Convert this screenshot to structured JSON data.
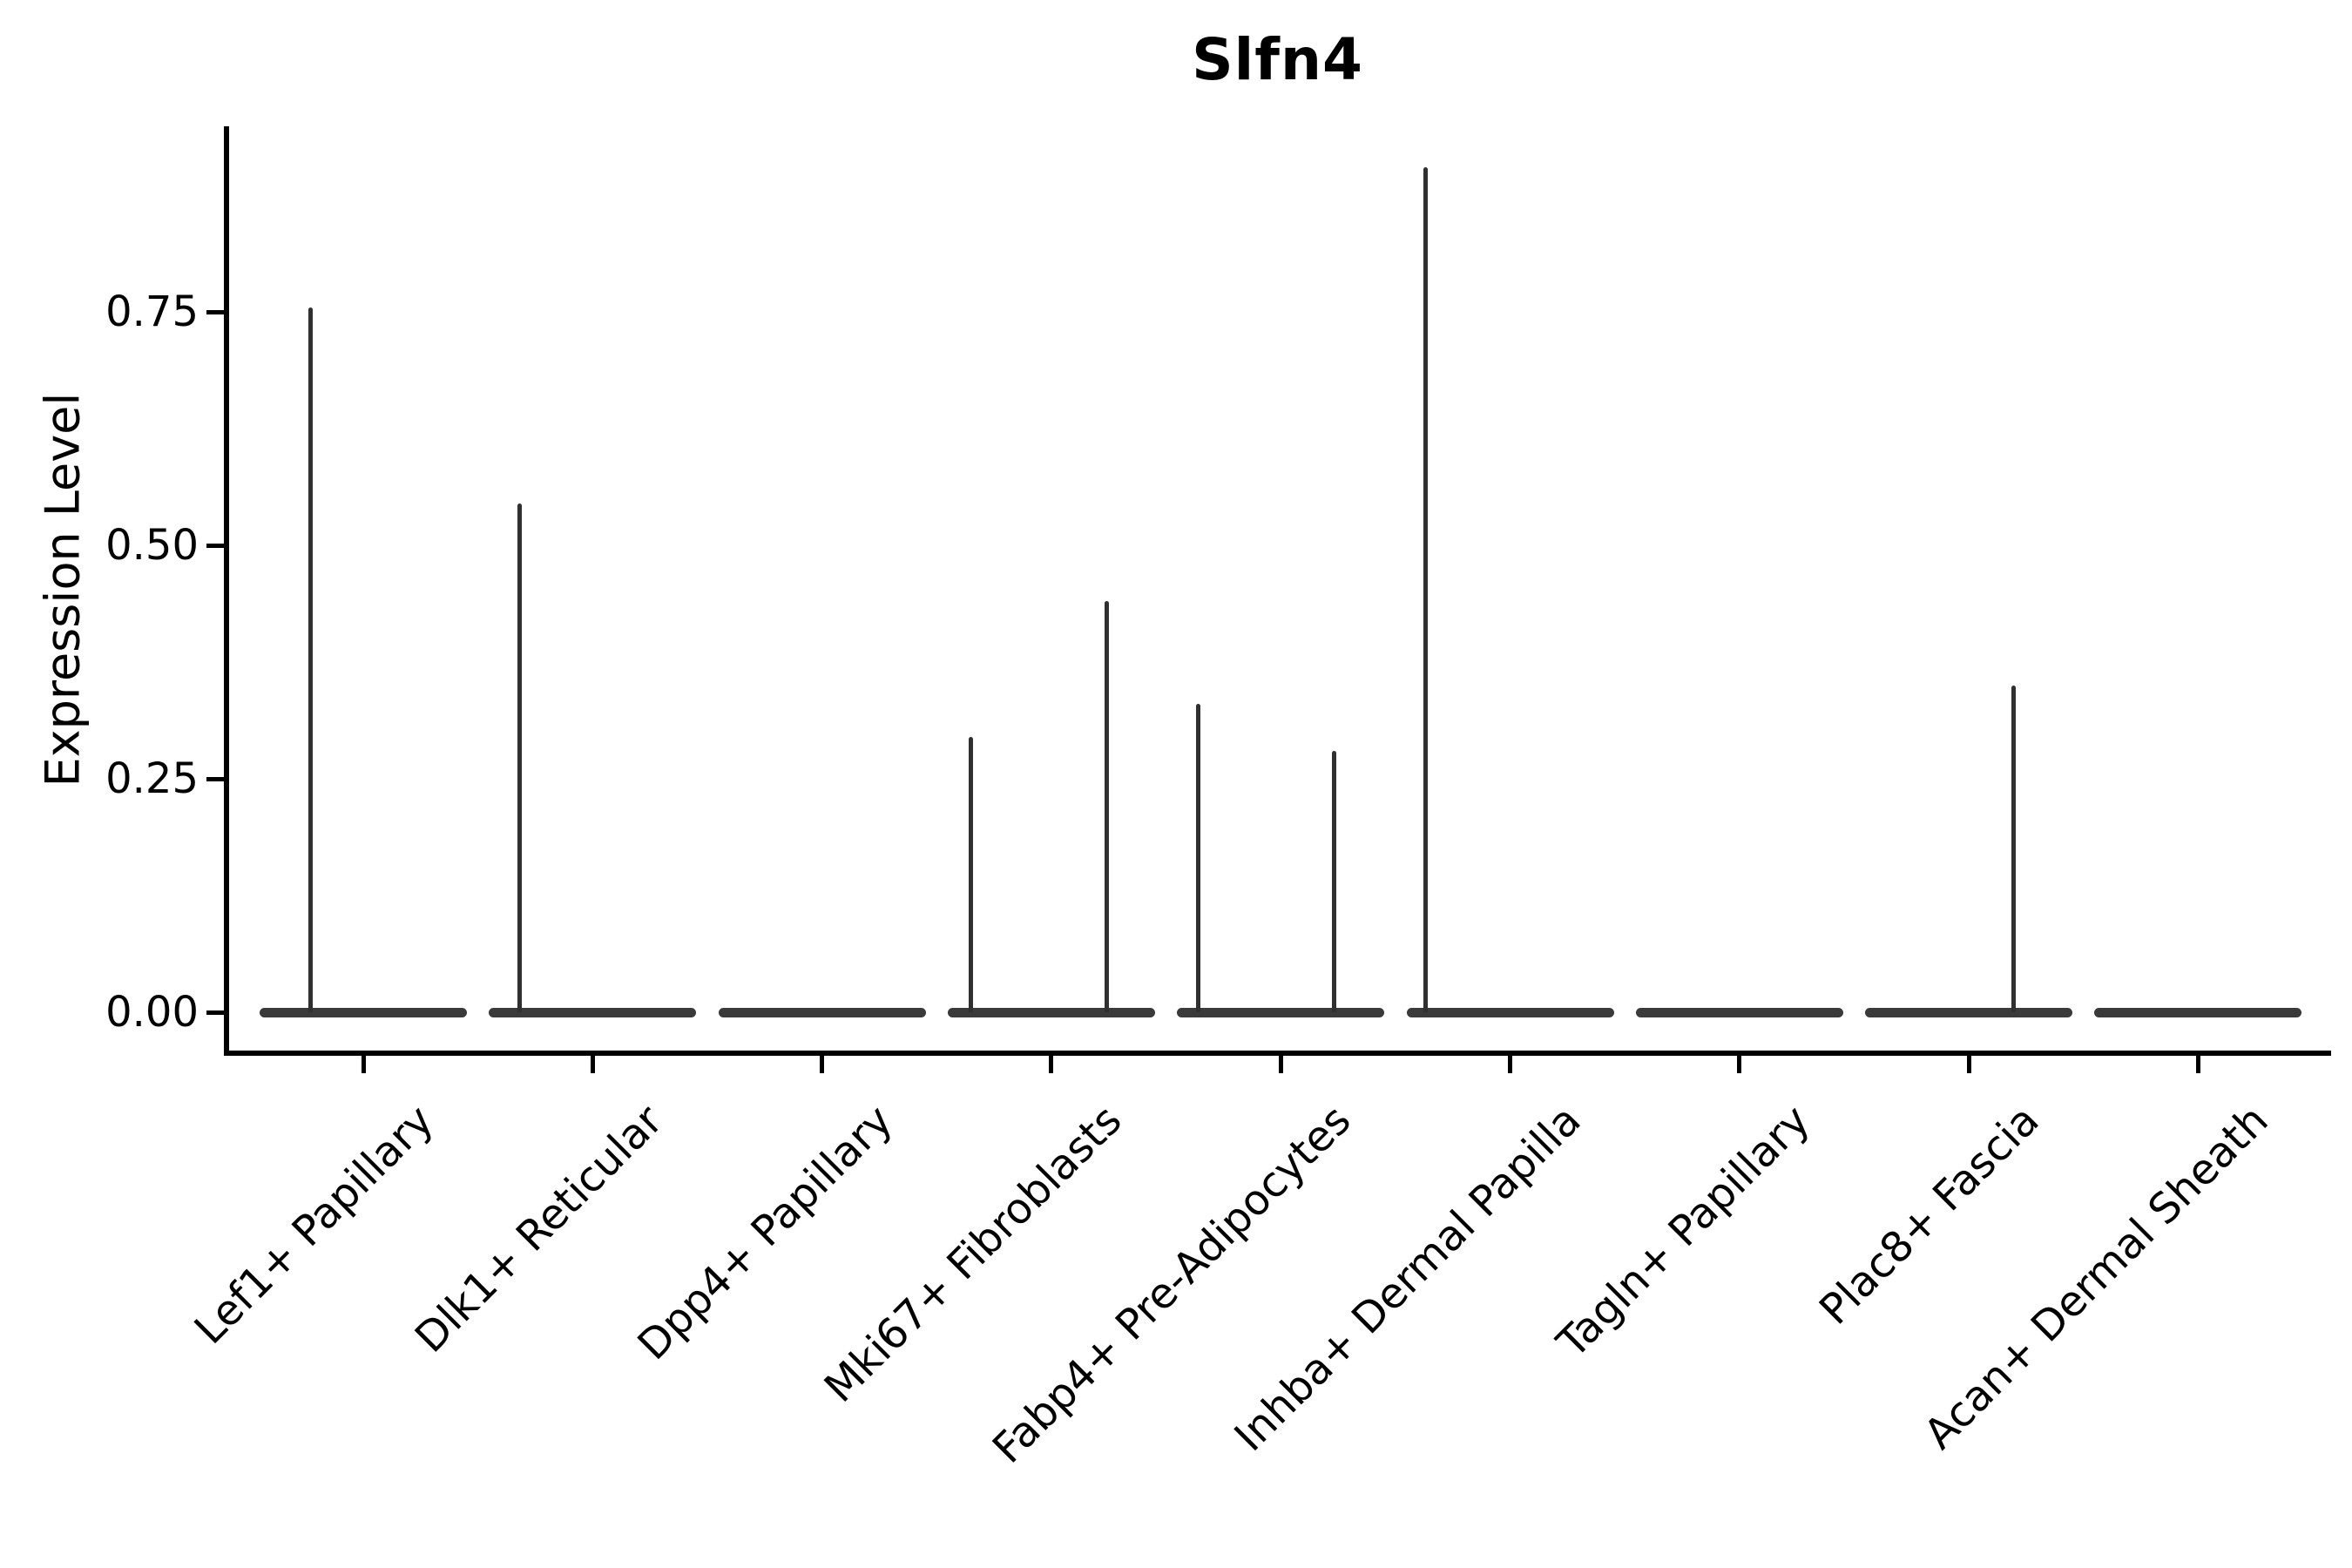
{
  "title": "Slfn4",
  "y_axis": {
    "label": "Expression Level",
    "ticks": [
      "0.00",
      "0.25",
      "0.50",
      "0.75"
    ],
    "tick_values": [
      0.0,
      0.25,
      0.5,
      0.75
    ]
  },
  "x_axis": {
    "categories": [
      "Lef1+ Papillary",
      "Dlk1+ Reticular",
      "Dpp4+ Papillary",
      "Mki67+ Fibroblasts",
      "Fabp4+ Pre-Adipocytes",
      "Inhba+ Dermal Papilla",
      "Tagln+ Papillary",
      "Plac8+ Fascia",
      "Acan+ Dermal Sheath"
    ]
  },
  "violins": [
    {
      "label": "Lef1+ Papillary",
      "spikes": [
        {
          "dx": -61,
          "value": 0.755
        }
      ]
    },
    {
      "label": "Dlk1+ Reticular",
      "spikes": [
        {
          "dx": -84,
          "value": 0.545
        }
      ]
    },
    {
      "label": "Dpp4+ Papillary",
      "spikes": []
    },
    {
      "label": "Mki67+ Fibroblasts",
      "spikes": [
        {
          "dx": -92,
          "value": 0.295
        },
        {
          "dx": 64,
          "value": 0.44
        }
      ]
    },
    {
      "label": "Fabp4+ Pre-Adipocytes",
      "spikes": [
        {
          "dx": -95,
          "value": 0.33
        },
        {
          "dx": 61,
          "value": 0.28
        }
      ]
    },
    {
      "label": "Inhba+ Dermal Papilla",
      "spikes": [
        {
          "dx": -97,
          "value": 0.905
        }
      ]
    },
    {
      "label": "Tagln+ Papillary",
      "spikes": []
    },
    {
      "label": "Plac8+ Fascia",
      "spikes": [
        {
          "dx": 51,
          "value": 0.35
        }
      ]
    },
    {
      "label": "Acan+ Dermal Sheath",
      "spikes": []
    }
  ],
  "colors": {
    "violin_fill": "#3a3a3a",
    "spike": "#303030",
    "axis": "#000000",
    "text": "#000000",
    "background": "#ffffff"
  },
  "chart_data": {
    "type": "violin",
    "title": "Slfn4",
    "xlabel": "",
    "ylabel": "Expression Level",
    "ylim": [
      -0.04,
      0.95
    ],
    "yticks": [
      0.0,
      0.25,
      0.5,
      0.75
    ],
    "grid": false,
    "legend": "none",
    "categories": [
      "Lef1+ Papillary",
      "Dlk1+ Reticular",
      "Dpp4+ Papillary",
      "Mki67+ Fibroblasts",
      "Fabp4+ Pre-Adipocytes",
      "Inhba+ Dermal Papilla",
      "Tagln+ Papillary",
      "Plac8+ Fascia",
      "Acan+ Dermal Sheath"
    ],
    "series": [
      {
        "name": "Lef1+ Papillary",
        "bulk_value": 0,
        "spike_max_values": [
          0.755
        ]
      },
      {
        "name": "Dlk1+ Reticular",
        "bulk_value": 0,
        "spike_max_values": [
          0.545
        ]
      },
      {
        "name": "Dpp4+ Papillary",
        "bulk_value": 0,
        "spike_max_values": []
      },
      {
        "name": "Mki67+ Fibroblasts",
        "bulk_value": 0,
        "spike_max_values": [
          0.295,
          0.44
        ]
      },
      {
        "name": "Fabp4+ Pre-Adipocytes",
        "bulk_value": 0,
        "spike_max_values": [
          0.33,
          0.28
        ]
      },
      {
        "name": "Inhba+ Dermal Papilla",
        "bulk_value": 0,
        "spike_max_values": [
          0.905
        ]
      },
      {
        "name": "Tagln+ Papillary",
        "bulk_value": 0,
        "spike_max_values": []
      },
      {
        "name": "Plac8+ Fascia",
        "bulk_value": 0,
        "spike_max_values": [
          0.35
        ]
      },
      {
        "name": "Acan+ Dermal Sheath",
        "bulk_value": 0,
        "spike_max_values": []
      }
    ],
    "description": "Each violin collapses to a flat horizontal bar at expression 0; thin vertical spikes mark rare expressing cells reaching the listed maxima."
  }
}
